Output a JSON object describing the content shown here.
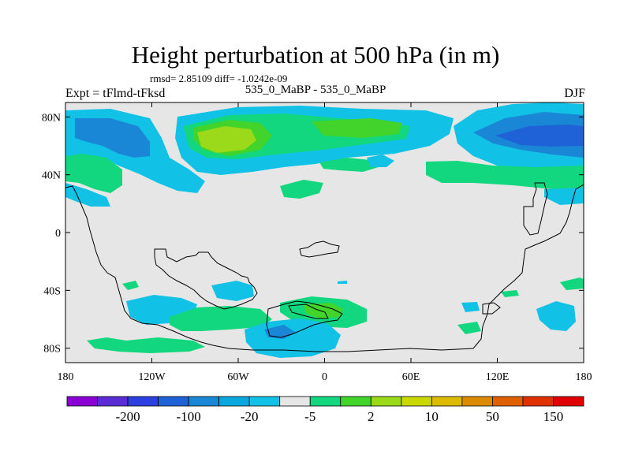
{
  "title": "Height perturbation at 500 hPa (in m)",
  "stats_text": "rmsd= 2.85109 diff= -1.0242e-09",
  "left_label": "Expt = tFlmd-tFksd",
  "center_label": "535_0_MaBP - 535_0_MaBP",
  "right_label": "DJF",
  "map": {
    "projection": "cylindrical-equidistant",
    "lon_range": [
      -180,
      180
    ],
    "lat_range": [
      -90,
      90
    ],
    "background_color": "#e6e6e6",
    "x_ticks": [
      "180",
      "120W",
      "60W",
      "0",
      "60E",
      "120E",
      "180"
    ],
    "y_ticks": [
      "80N",
      "40N",
      "0",
      "40S",
      "80S"
    ]
  },
  "colorbar": {
    "colors": [
      "#8a00d4",
      "#5a2cd6",
      "#2c3fe0",
      "#1f62d8",
      "#1a87d6",
      "#0aa7de",
      "#12c2e6",
      "#e6e6e6",
      "#12d77e",
      "#42d42a",
      "#9ada1a",
      "#c8d800",
      "#dcbb00",
      "#dc8a00",
      "#e06000",
      "#e03000",
      "#e00000"
    ],
    "labels": [
      "-200",
      "-100",
      "-20",
      "-5",
      "2",
      "10",
      "50",
      "150"
    ]
  }
}
